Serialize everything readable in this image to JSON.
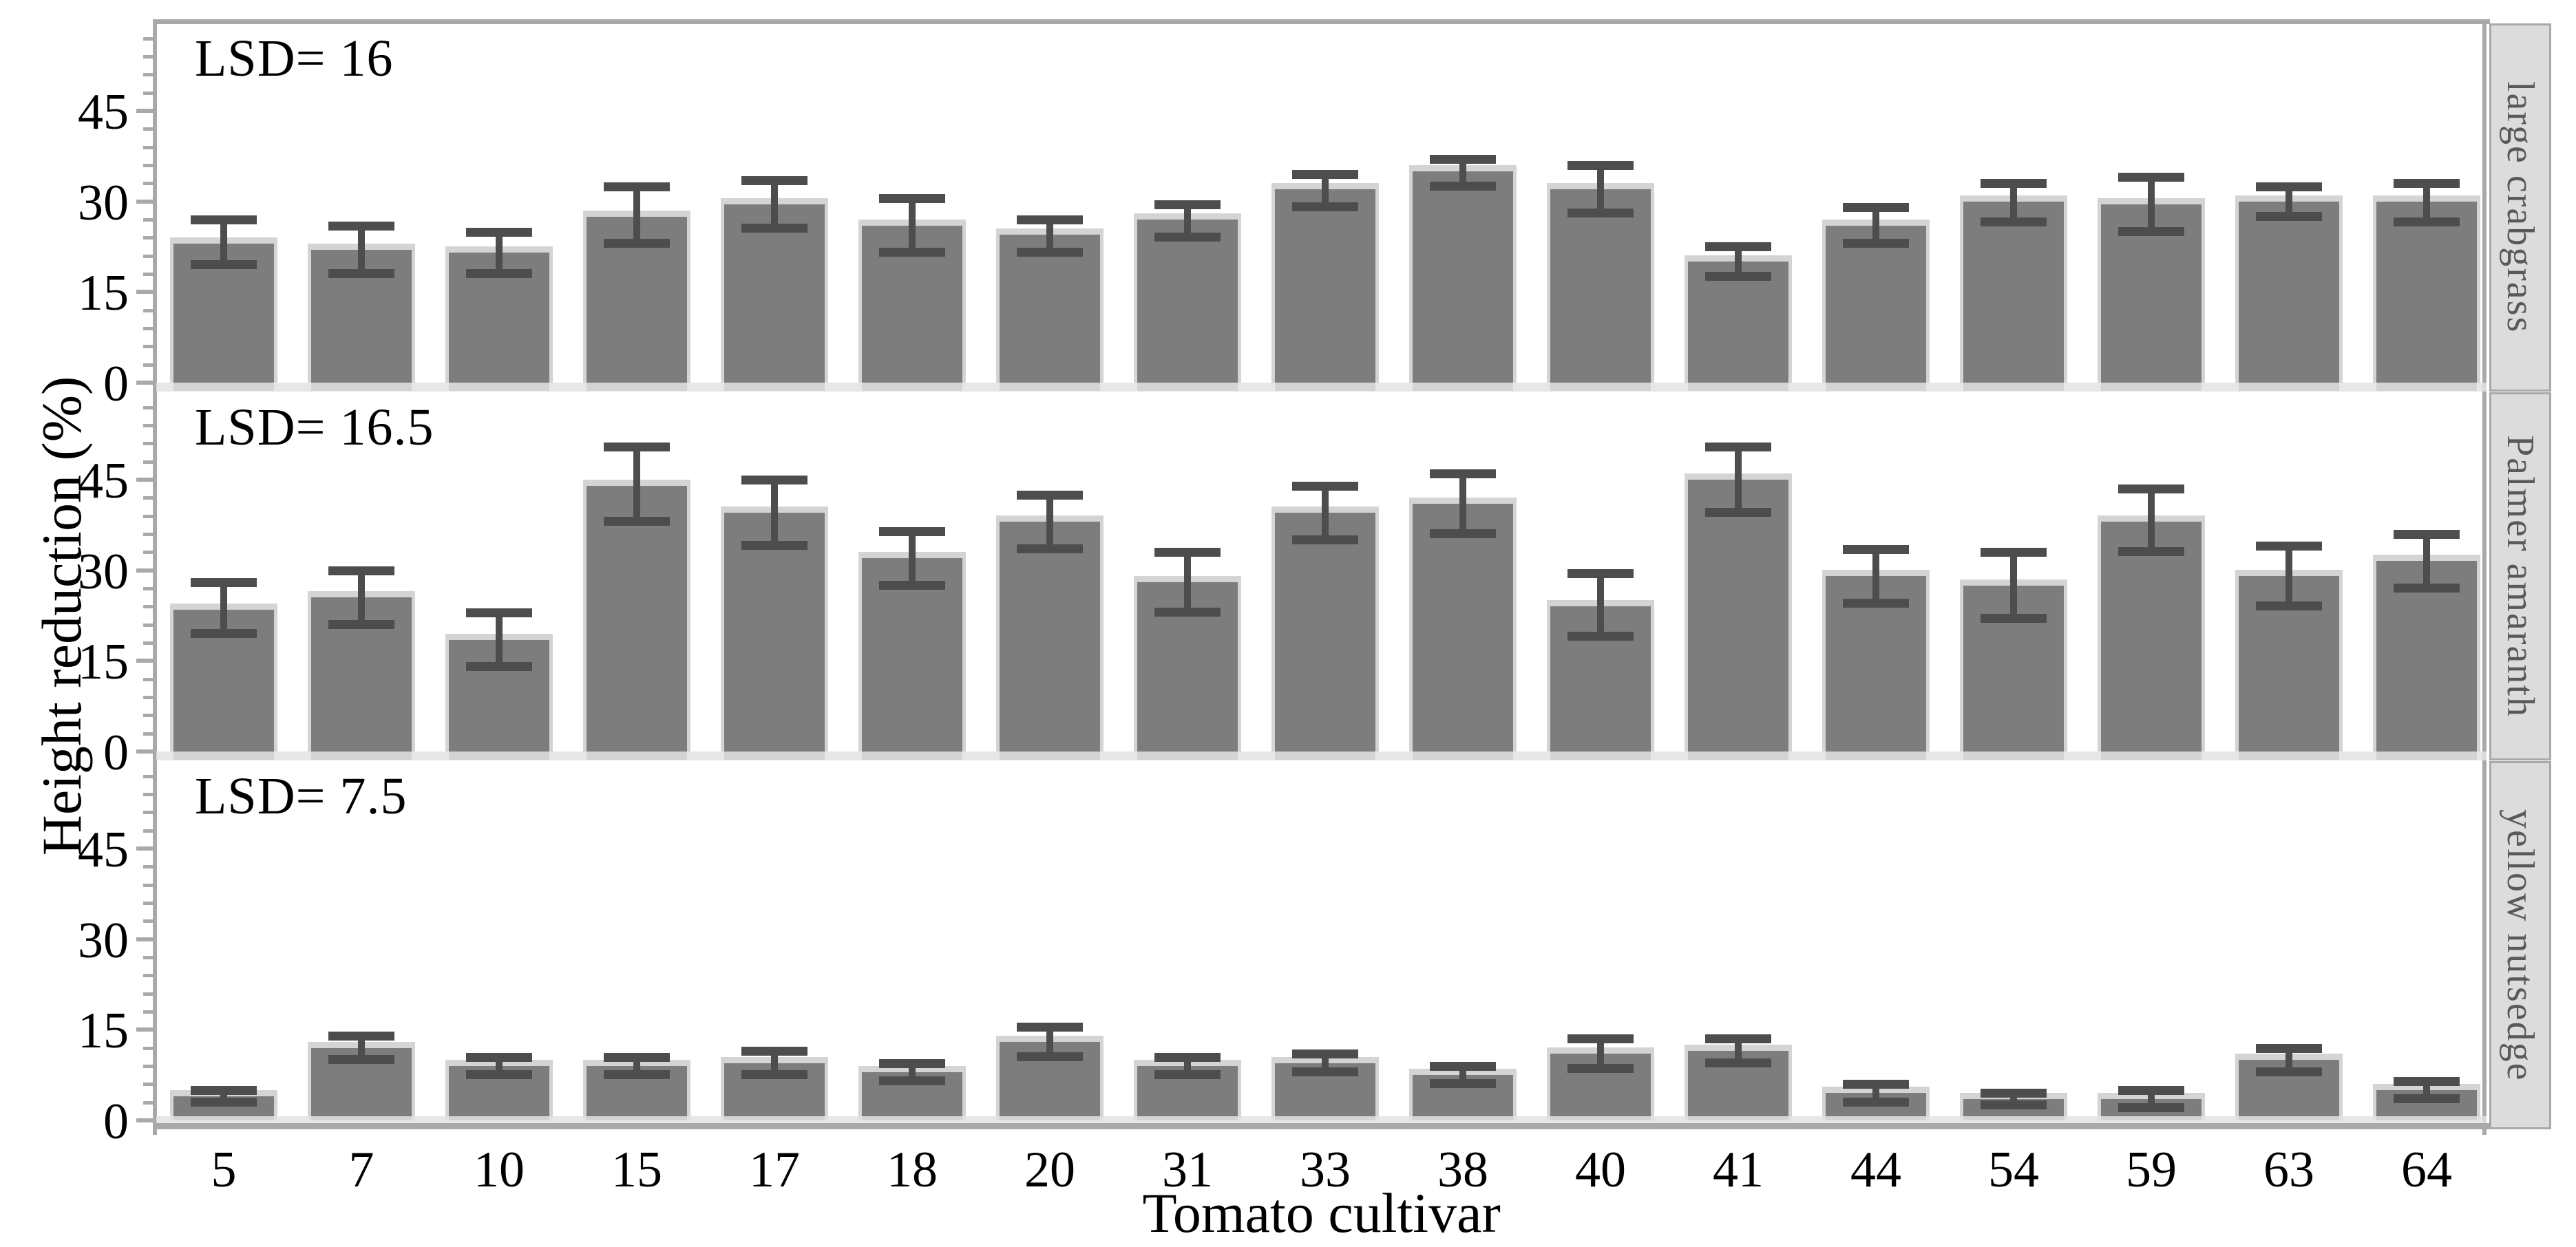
{
  "chart_data": {
    "type": "bar",
    "title": "",
    "xlabel": "Tomato cultivar",
    "ylabel": "Height reduction (%)",
    "facet_position": "right-strips",
    "grid": false,
    "ylim": [
      0,
      59
    ],
    "y_major_ticks": [
      0,
      15,
      30,
      45
    ],
    "y_minor_tick_step": 3,
    "categories": [
      "5",
      "7",
      "10",
      "15",
      "17",
      "18",
      "20",
      "31",
      "33",
      "38",
      "40",
      "41",
      "44",
      "54",
      "59",
      "63",
      "64"
    ],
    "panels": [
      {
        "facet_label": "large crabgrass",
        "lsd_label": "LSD= 16",
        "values": [
          23,
          22,
          21.5,
          27.5,
          29.5,
          26,
          24.5,
          27,
          32,
          35,
          32,
          20,
          26,
          30,
          29.5,
          30,
          30
        ],
        "err_hi": [
          4,
          4,
          3.5,
          5,
          4,
          4.5,
          2.5,
          2.5,
          2.5,
          2,
          4,
          2.5,
          3,
          3,
          4.5,
          2.5,
          3
        ],
        "err_lo": [
          3.5,
          4,
          3.5,
          4.5,
          4,
          4.5,
          3,
          3,
          3,
          2.5,
          4,
          2.5,
          3,
          3.5,
          4.5,
          2.5,
          3.5
        ]
      },
      {
        "facet_label": "Palmer amaranth",
        "lsd_label": "LSD= 16.5",
        "values": [
          23.5,
          25.5,
          18.5,
          44,
          39.5,
          32,
          38,
          28,
          39.5,
          41,
          24,
          45,
          29,
          27.5,
          38,
          29,
          31.5
        ],
        "err_hi": [
          4.5,
          4.5,
          4.5,
          6.5,
          5.5,
          4.5,
          4.5,
          5,
          4.5,
          5,
          5.5,
          5.5,
          4.5,
          5.5,
          5.5,
          5,
          4.5
        ],
        "err_lo": [
          4,
          4.5,
          4.5,
          6,
          5.5,
          4.5,
          4.5,
          5,
          4.5,
          5,
          5,
          5.5,
          4.5,
          5.5,
          5,
          5,
          4.5
        ]
      },
      {
        "facet_label": "yellow nutsedge",
        "lsd_label": "LSD= 7.5",
        "values": [
          4,
          12,
          9,
          9,
          9.5,
          8,
          13,
          9,
          9.5,
          7.5,
          11,
          11.5,
          4.5,
          3.5,
          3.5,
          10,
          5
        ],
        "err_hi": [
          1,
          2,
          1.5,
          1.5,
          2,
          1.5,
          2.5,
          1.5,
          1.5,
          1.5,
          2.5,
          2,
          1.5,
          1,
          1.5,
          2,
          1.5
        ],
        "err_lo": [
          1,
          2,
          1.5,
          1.5,
          2,
          1.5,
          2.5,
          1.5,
          1.5,
          1.5,
          2.5,
          2,
          1.5,
          1,
          1.5,
          2,
          1.5
        ]
      }
    ]
  },
  "colors": {
    "bar": "#7d7d7d",
    "bar_halo": "#c6c6c6",
    "error_bar": "#4d4d4d",
    "axis": "#a9a9a9",
    "strip_bg": "#dcdcdc",
    "strip_text": "#595959",
    "text": "#000000"
  }
}
